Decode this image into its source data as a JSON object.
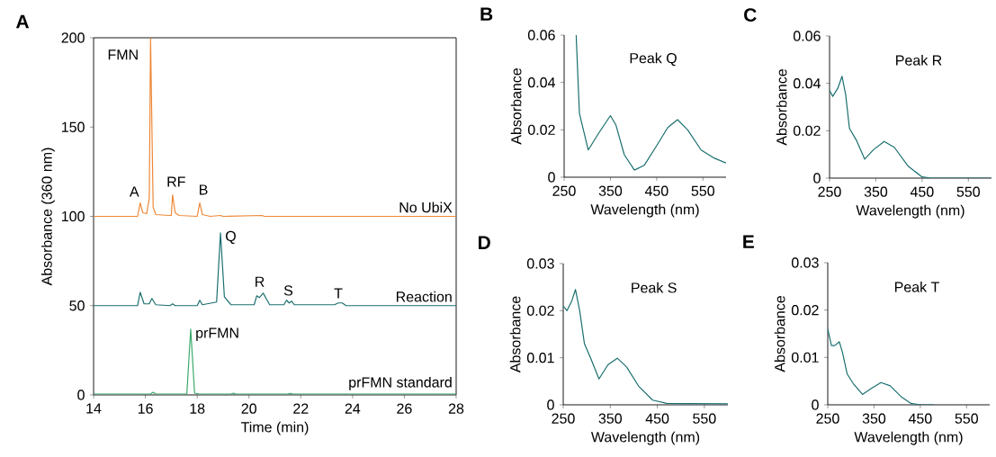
{
  "chart_data": [
    {
      "type": "line",
      "title": "A",
      "xlabel": "Time (min)",
      "ylabel": "Absorbance (360 nm)",
      "xlim": [
        14,
        28
      ],
      "ylim": [
        0,
        200
      ],
      "xticks": [
        14,
        16,
        18,
        20,
        22,
        24,
        26,
        28
      ],
      "yticks": [
        0,
        50,
        100,
        150,
        200
      ],
      "series": [
        {
          "name": "No UbiX",
          "color": "#ee8838",
          "x": [
            14,
            15.7,
            15.8,
            15.9,
            16.05,
            16.15,
            16.2,
            16.3,
            16.4,
            16.9,
            17.0,
            17.05,
            17.15,
            17.3,
            18.0,
            18.1,
            18.2,
            18.5,
            18.9,
            19.0,
            20.5,
            20.6,
            28
          ],
          "values": [
            100,
            100,
            107.5,
            102,
            101.5,
            110,
            200,
            105,
            101,
            100.5,
            100.5,
            112,
            102,
            100.5,
            100,
            107.5,
            101,
            100,
            100.5,
            100,
            100.5,
            100,
            100
          ]
        },
        {
          "name": "Reaction",
          "color": "#1b6f6f",
          "x": [
            14,
            15.7,
            15.8,
            15.95,
            16.15,
            16.25,
            16.4,
            16.95,
            17.05,
            17.15,
            18.0,
            18.1,
            18.2,
            18.75,
            18.9,
            19.05,
            19.3,
            20.2,
            20.3,
            20.4,
            20.55,
            20.7,
            20.8,
            21.35,
            21.45,
            21.55,
            21.65,
            21.75,
            23.3,
            23.45,
            23.6,
            23.75,
            28
          ],
          "values": [
            50,
            50,
            57.5,
            51,
            51,
            54,
            50.5,
            50,
            51,
            50,
            50,
            53,
            50.5,
            52,
            90.7,
            55,
            50.5,
            50.5,
            55.5,
            54.5,
            57,
            53,
            50.5,
            50.5,
            53,
            51.5,
            52.5,
            50.5,
            50.5,
            51.5,
            51.5,
            50,
            50
          ]
        },
        {
          "name": "prFMN standard",
          "color": "#3aa86b",
          "x": [
            14,
            16.2,
            16.3,
            16.4,
            17.6,
            17.75,
            17.9,
            18.1,
            19.3,
            19.4,
            19.5,
            21.5,
            21.6,
            21.7,
            28
          ],
          "values": [
            0.5,
            0.5,
            1.5,
            0.5,
            0.5,
            36.9,
            1,
            0.5,
            0.5,
            1,
            0.5,
            0.5,
            0.8,
            0.5,
            0.5
          ]
        }
      ],
      "annotations": [
        {
          "text": "FMN",
          "x": 16.2,
          "y": 200
        },
        {
          "text": "A",
          "x": 15.8,
          "y": 107.5
        },
        {
          "text": "RF",
          "x": 17.05,
          "y": 112
        },
        {
          "text": "B",
          "x": 18.1,
          "y": 107.5
        },
        {
          "text": "Q",
          "x": 18.9,
          "y": 90.7
        },
        {
          "text": "R",
          "x": 20.55,
          "y": 57
        },
        {
          "text": "S",
          "x": 21.45,
          "y": 53
        },
        {
          "text": "T",
          "x": 23.45,
          "y": 51.5
        },
        {
          "text": "prFMN",
          "x": 17.75,
          "y": 36.9
        }
      ]
    },
    {
      "type": "line",
      "title": "B",
      "xlabel": "Wavelength (nm)",
      "ylabel": "Absorbance",
      "xlim": [
        250,
        600
      ],
      "ylim": [
        0,
        0.06
      ],
      "xticks": [
        250,
        350,
        450,
        550
      ],
      "yticks": [
        0,
        0.02,
        0.04,
        0.06
      ],
      "annotations": [
        "Peak Q"
      ],
      "series": [
        {
          "color": "#1b6f6f",
          "x": [
            276,
            283,
            302,
            326,
            350,
            362,
            380,
            402,
            423,
            449,
            474,
            495,
            517,
            546,
            575,
            600
          ],
          "values": [
            0.06,
            0.027,
            0.0115,
            0.019,
            0.026,
            0.022,
            0.0095,
            0.003,
            0.005,
            0.013,
            0.021,
            0.0243,
            0.02,
            0.0115,
            0.008,
            0.006
          ]
        }
      ]
    },
    {
      "type": "line",
      "title": "C",
      "xlabel": "Wavelength (nm)",
      "ylabel": "Absorbance",
      "xlim": [
        250,
        600
      ],
      "ylim": [
        0,
        0.06
      ],
      "xticks": [
        250,
        350,
        450,
        550
      ],
      "yticks": [
        0,
        0.02,
        0.04,
        0.06
      ],
      "annotations": [
        "Peak R"
      ],
      "series": [
        {
          "color": "#1b6f6f",
          "x": [
            250,
            257,
            268,
            277,
            285,
            293,
            308,
            326,
            345,
            368,
            390,
            420,
            450,
            470,
            600
          ],
          "values": [
            0.037,
            0.0345,
            0.038,
            0.043,
            0.035,
            0.021,
            0.016,
            0.008,
            0.012,
            0.0155,
            0.013,
            0.005,
            0.0005,
            0,
            0
          ]
        }
      ]
    },
    {
      "type": "line",
      "title": "D",
      "xlabel": "Wavelength (nm)",
      "ylabel": "Absorbance",
      "xlim": [
        250,
        600
      ],
      "ylim": [
        0,
        0.03
      ],
      "xticks": [
        250,
        350,
        450,
        550
      ],
      "yticks": [
        0,
        0.01,
        0.02,
        0.03
      ],
      "annotations": [
        "Peak S"
      ],
      "series": [
        {
          "color": "#1b6f6f",
          "x": [
            250,
            258,
            268,
            276,
            285,
            295,
            308,
            326,
            345,
            365,
            385,
            410,
            440,
            470,
            600
          ],
          "values": [
            0.021,
            0.02,
            0.022,
            0.0245,
            0.02,
            0.013,
            0.01,
            0.0055,
            0.0085,
            0.0099,
            0.008,
            0.004,
            0.001,
            0.0003,
            0.0002
          ]
        }
      ]
    },
    {
      "type": "line",
      "title": "E",
      "xlabel": "Wavelength (nm)",
      "ylabel": "Absorbance",
      "xlim": [
        250,
        600
      ],
      "ylim": [
        0,
        0.03
      ],
      "xticks": [
        250,
        350,
        450,
        550
      ],
      "yticks": [
        0,
        0.01,
        0.02,
        0.03
      ],
      "annotations": [
        "Peak T"
      ],
      "series": [
        {
          "color": "#1b6f6f",
          "x": [
            250,
            258,
            265,
            275,
            282,
            292,
            305,
            325,
            345,
            365,
            385,
            410,
            430,
            450,
            480
          ],
          "values": [
            0.016,
            0.0125,
            0.0125,
            0.0133,
            0.011,
            0.0065,
            0.0045,
            0.0022,
            0.0035,
            0.0047,
            0.004,
            0.0016,
            0.0003,
            0,
            0
          ]
        }
      ]
    }
  ]
}
